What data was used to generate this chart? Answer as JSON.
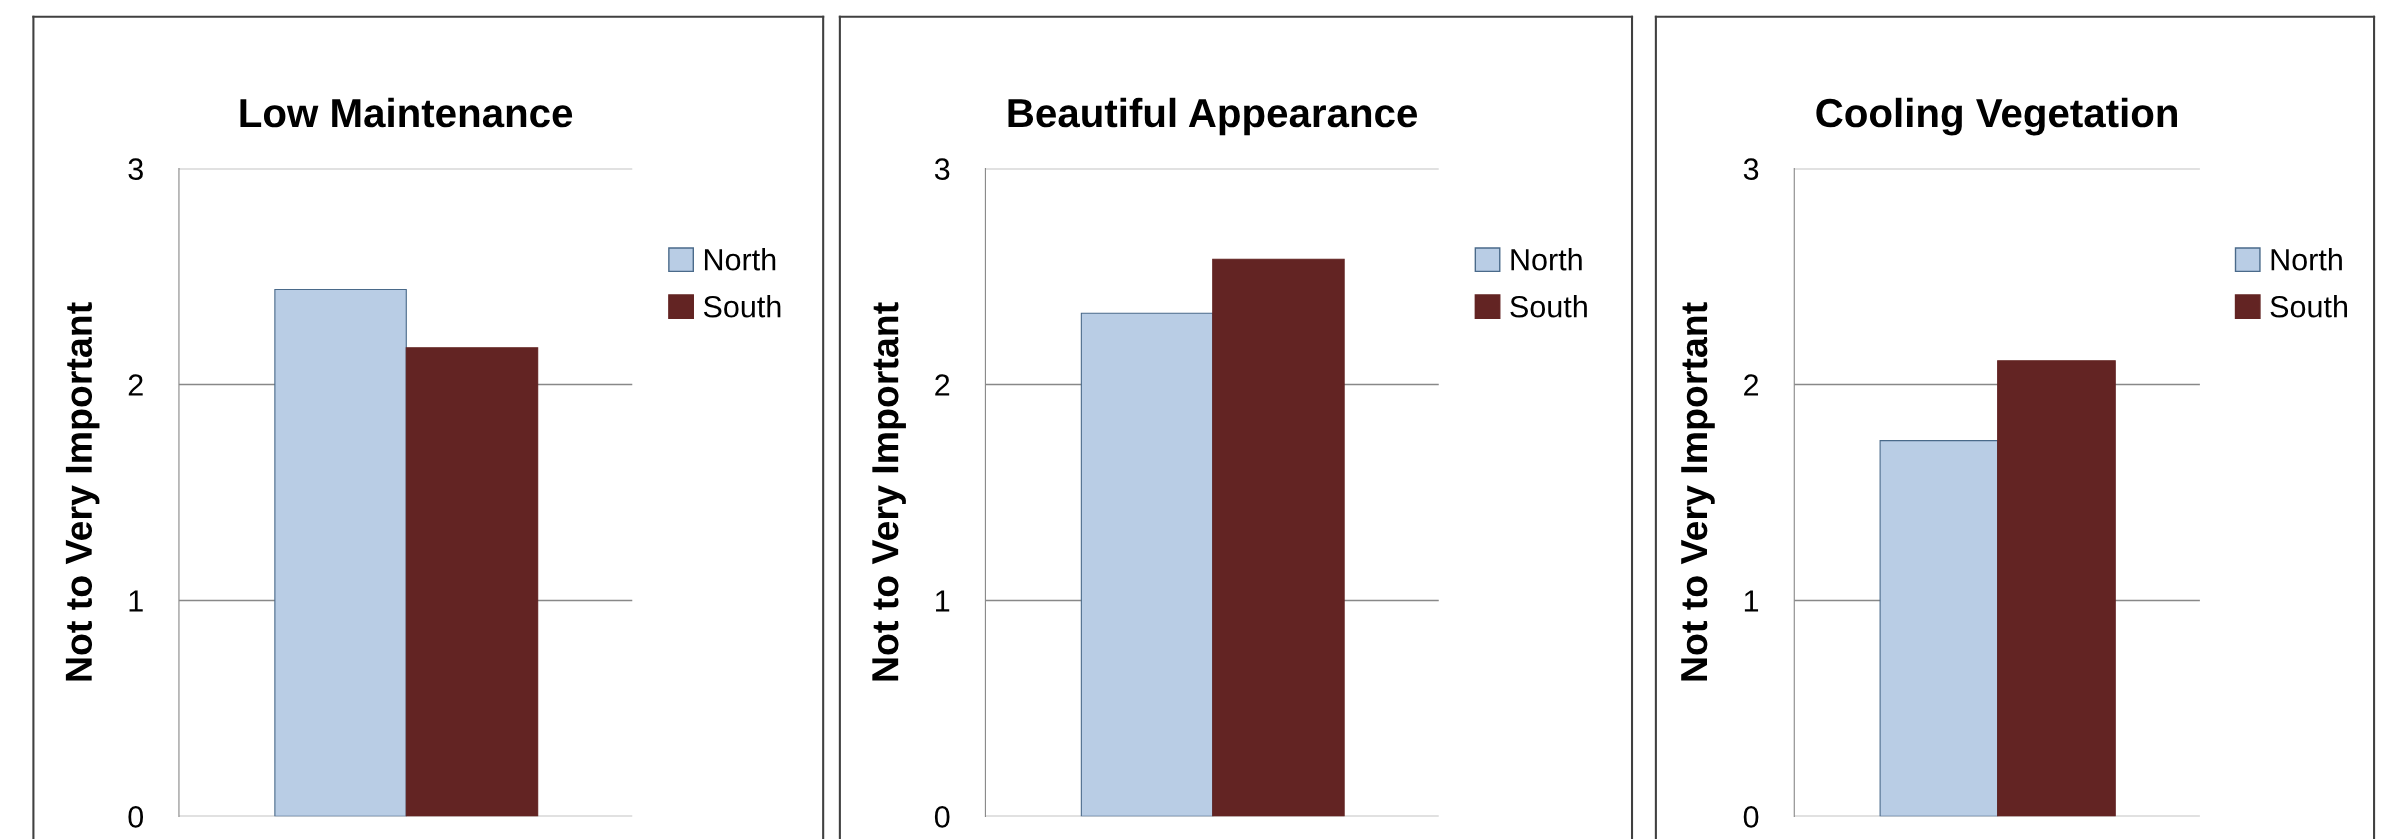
{
  "chart_data": [
    {
      "type": "bar",
      "title": "Low Maintenance",
      "ylabel": "Not to Very Important",
      "categories": [
        null
      ],
      "series": [
        {
          "name": "North",
          "color": "#b9cde5",
          "values": [
            2.44
          ]
        },
        {
          "name": "South",
          "color": "#632423",
          "values": [
            2.17
          ]
        }
      ],
      "ylim": [
        0,
        3
      ],
      "yticks": [
        0,
        1,
        2,
        3
      ],
      "grid": "y",
      "legend": "right",
      "tick_labels": "y"
    },
    {
      "type": "bar",
      "title": "Beautiful Appearance",
      "ylabel": "Not to Very Important",
      "categories": [
        null
      ],
      "series": [
        {
          "name": "North",
          "color": "#b9cde5",
          "values": [
            2.33
          ]
        },
        {
          "name": "South",
          "color": "#632423",
          "values": [
            2.58
          ]
        }
      ],
      "ylim": [
        0,
        3
      ],
      "yticks": [
        0,
        1,
        2,
        3
      ],
      "grid": "y",
      "legend": "right",
      "tick_labels": "y"
    },
    {
      "type": "bar",
      "title": "Cooling Vegetation",
      "ylabel": "Not to Very Important",
      "categories": [
        null
      ],
      "series": [
        {
          "name": "North",
          "color": "#b9cde5",
          "values": [
            1.74
          ]
        },
        {
          "name": "South",
          "color": "#632423",
          "values": [
            2.11
          ]
        }
      ],
      "ylim": [
        0,
        3
      ],
      "yticks": [
        0,
        1,
        2,
        3
      ],
      "grid": "y",
      "legend": "right",
      "tick_labels": "y"
    }
  ]
}
